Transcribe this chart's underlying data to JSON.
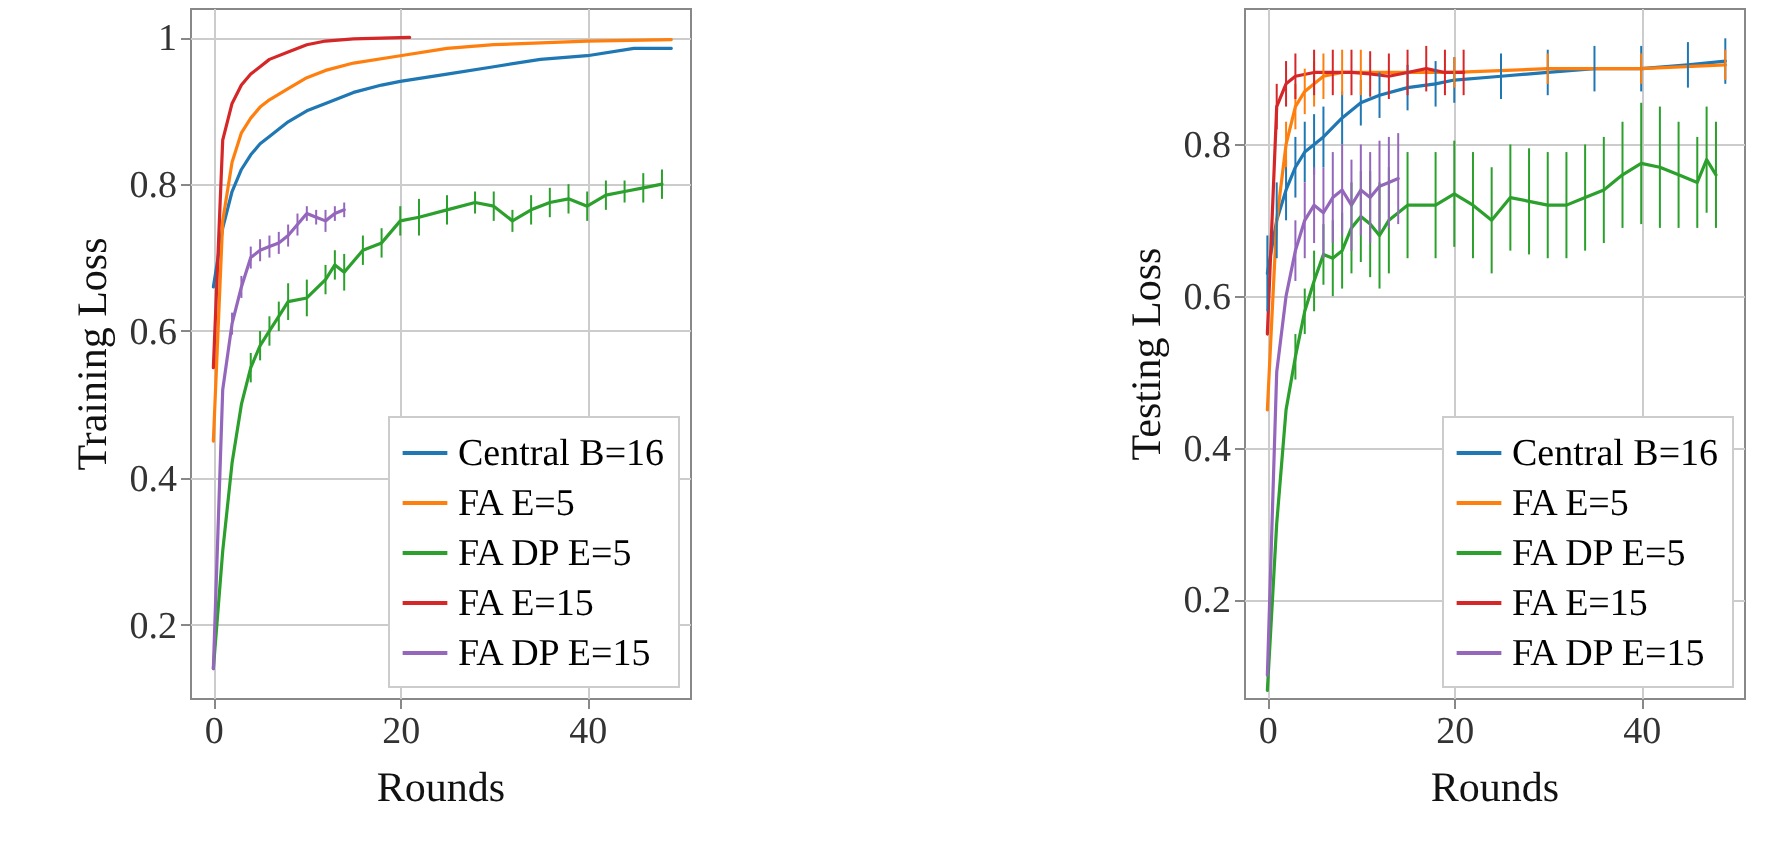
{
  "chart_data": [
    {
      "type": "line",
      "xlabel": "Rounds",
      "ylabel": "Training Loss",
      "xlim": [
        -2.5,
        51
      ],
      "ylim": [
        0.1,
        1.04
      ],
      "xticks": [
        0,
        20,
        40
      ],
      "yticks": [
        0.2,
        0.4,
        0.6,
        0.8,
        {
          "value": 1,
          "label": "1"
        }
      ],
      "grid": true,
      "legend": "bottom right",
      "marker": "none",
      "line_style": "solid",
      "series": [
        {
          "name": "Central B=16",
          "color": "#1f77b4",
          "x": [
            0,
            1,
            2,
            3,
            4,
            5,
            6,
            8,
            10,
            12,
            15,
            18,
            20,
            25,
            30,
            35,
            40,
            45,
            49
          ],
          "values": [
            0.66,
            0.74,
            0.79,
            0.82,
            0.84,
            0.855,
            0.865,
            0.885,
            0.9,
            0.91,
            0.925,
            0.935,
            0.94,
            0.95,
            0.96,
            0.97,
            0.975,
            0.985,
            0.985
          ]
        },
        {
          "name": "FA E=5",
          "color": "#ff7f0e",
          "x": [
            0,
            1,
            2,
            3,
            4,
            5,
            6,
            8,
            10,
            12,
            15,
            20,
            25,
            30,
            40,
            49
          ],
          "values": [
            0.45,
            0.75,
            0.83,
            0.87,
            0.89,
            0.905,
            0.915,
            0.93,
            0.945,
            0.955,
            0.965,
            0.975,
            0.985,
            0.99,
            0.995,
            0.997
          ]
        },
        {
          "name": "FA DP E=5",
          "color": "#2ca02c",
          "x": [
            0,
            1,
            2,
            3,
            4,
            5,
            6,
            7,
            8,
            10,
            12,
            13,
            14,
            16,
            18,
            20,
            22,
            25,
            28,
            30,
            32,
            34,
            36,
            38,
            40,
            42,
            44,
            46,
            48
          ],
          "values": [
            0.14,
            0.3,
            0.42,
            0.5,
            0.55,
            0.58,
            0.6,
            0.62,
            0.64,
            0.645,
            0.67,
            0.69,
            0.68,
            0.71,
            0.72,
            0.75,
            0.755,
            0.765,
            0.775,
            0.77,
            0.75,
            0.765,
            0.775,
            0.78,
            0.77,
            0.785,
            0.79,
            0.795,
            0.8
          ],
          "errors": [
            null,
            null,
            null,
            null,
            0.02,
            0.02,
            0.02,
            0.02,
            0.025,
            0.025,
            0.02,
            0.02,
            0.025,
            0.02,
            0.02,
            0.02,
            0.025,
            0.02,
            0.015,
            0.02,
            0.015,
            0.02,
            0.02,
            0.02,
            0.02,
            0.02,
            0.015,
            0.02,
            0.02
          ]
        },
        {
          "name": "FA E=15",
          "color": "#d62728",
          "x": [
            0,
            1,
            2,
            3,
            4,
            5,
            6,
            8,
            10,
            12,
            15,
            21
          ],
          "values": [
            0.55,
            0.86,
            0.91,
            0.935,
            0.95,
            0.96,
            0.97,
            0.98,
            0.99,
            0.995,
            0.998,
            1.0
          ]
        },
        {
          "name": "FA DP E=15",
          "color": "#9467bd",
          "x": [
            0,
            1,
            2,
            3,
            4,
            5,
            6,
            7,
            8,
            9,
            10,
            11,
            12,
            13,
            14
          ],
          "values": [
            0.14,
            0.52,
            0.61,
            0.66,
            0.7,
            0.71,
            0.715,
            0.72,
            0.73,
            0.745,
            0.76,
            0.755,
            0.75,
            0.76,
            0.765
          ],
          "errors": [
            null,
            null,
            0.015,
            0.015,
            0.015,
            0.015,
            0.015,
            0.015,
            0.015,
            0.015,
            0.01,
            0.01,
            0.015,
            0.01,
            0.01
          ]
        }
      ]
    },
    {
      "type": "line",
      "xlabel": "Rounds",
      "ylabel": "Testing Loss",
      "xlim": [
        -2.5,
        51
      ],
      "ylim": [
        0.07,
        0.98
      ],
      "xticks": [
        0,
        20,
        40
      ],
      "yticks": [
        0.2,
        0.4,
        0.6,
        0.8
      ],
      "grid": true,
      "legend": "bottom right",
      "marker": "none",
      "line_style": "solid",
      "series": [
        {
          "name": "Central B=16",
          "color": "#1f77b4",
          "x": [
            0,
            1,
            2,
            3,
            4,
            5,
            6,
            8,
            10,
            12,
            15,
            18,
            20,
            25,
            30,
            35,
            40,
            45,
            49
          ],
          "values": [
            0.63,
            0.7,
            0.74,
            0.77,
            0.79,
            0.8,
            0.81,
            0.835,
            0.855,
            0.865,
            0.875,
            0.88,
            0.885,
            0.89,
            0.895,
            0.9,
            0.9,
            0.905,
            0.91
          ],
          "errors": [
            0.05,
            0.05,
            0.04,
            0.04,
            0.04,
            0.04,
            0.04,
            0.035,
            0.03,
            0.03,
            0.03,
            0.03,
            0.03,
            0.03,
            0.03,
            0.03,
            0.03,
            0.03,
            0.03
          ]
        },
        {
          "name": "FA E=5",
          "color": "#ff7f0e",
          "x": [
            0,
            1,
            2,
            3,
            4,
            5,
            6,
            8,
            10,
            15,
            20,
            30,
            40,
            49
          ],
          "values": [
            0.45,
            0.7,
            0.8,
            0.85,
            0.87,
            0.88,
            0.89,
            0.895,
            0.895,
            0.895,
            0.895,
            0.9,
            0.9,
            0.905
          ],
          "errors": [
            null,
            null,
            0.03,
            0.03,
            0.03,
            0.03,
            0.03,
            0.03,
            0.03,
            null,
            0.02,
            0.02,
            0.02,
            0.02
          ]
        },
        {
          "name": "FA DP E=5",
          "color": "#2ca02c",
          "x": [
            0,
            1,
            2,
            3,
            4,
            5,
            6,
            7,
            8,
            9,
            10,
            11,
            12,
            13,
            15,
            18,
            20,
            22,
            24,
            26,
            28,
            30,
            32,
            34,
            36,
            38,
            40,
            42,
            44,
            46,
            47,
            48
          ],
          "values": [
            0.08,
            0.3,
            0.45,
            0.52,
            0.58,
            0.62,
            0.655,
            0.65,
            0.66,
            0.69,
            0.705,
            0.695,
            0.68,
            0.7,
            0.72,
            0.72,
            0.735,
            0.72,
            0.7,
            0.73,
            0.725,
            0.72,
            0.72,
            0.73,
            0.74,
            0.76,
            0.775,
            0.77,
            0.76,
            0.75,
            0.78,
            0.76
          ],
          "errors": [
            null,
            null,
            null,
            0.03,
            0.03,
            0.04,
            0.04,
            0.05,
            0.05,
            0.06,
            0.06,
            0.07,
            0.07,
            0.07,
            0.07,
            0.07,
            0.07,
            0.07,
            0.07,
            0.07,
            0.07,
            0.07,
            0.07,
            0.07,
            0.07,
            0.07,
            0.08,
            0.08,
            0.07,
            0.06,
            0.07,
            0.07
          ]
        },
        {
          "name": "FA E=15",
          "color": "#d62728",
          "x": [
            0,
            1,
            2,
            3,
            5,
            7,
            9,
            11,
            13,
            15,
            17,
            19,
            21
          ],
          "values": [
            0.55,
            0.85,
            0.88,
            0.89,
            0.895,
            0.895,
            0.895,
            0.893,
            0.89,
            0.895,
            0.9,
            0.895,
            0.895
          ],
          "errors": [
            null,
            0.03,
            0.03,
            0.03,
            0.03,
            0.03,
            0.03,
            0.03,
            0.03,
            0.03,
            0.03,
            0.03,
            0.03
          ]
        },
        {
          "name": "FA DP E=15",
          "color": "#9467bd",
          "x": [
            0,
            1,
            2,
            3,
            4,
            5,
            6,
            7,
            8,
            9,
            10,
            11,
            12,
            13,
            14
          ],
          "values": [
            0.1,
            0.5,
            0.6,
            0.66,
            0.7,
            0.72,
            0.71,
            0.73,
            0.74,
            0.72,
            0.74,
            0.73,
            0.745,
            0.75,
            0.755
          ],
          "errors": [
            null,
            null,
            null,
            0.04,
            0.05,
            0.05,
            0.06,
            0.06,
            0.06,
            0.06,
            0.06,
            0.06,
            0.06,
            0.06,
            0.06
          ]
        }
      ]
    }
  ]
}
